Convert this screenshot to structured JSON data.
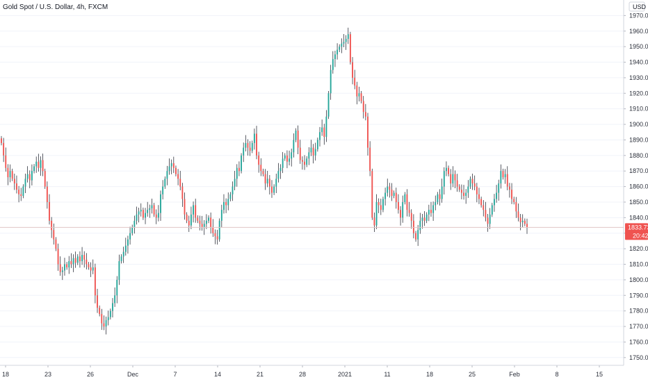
{
  "chart_data": {
    "type": "candlestick",
    "title": "Gold Spot / U.S. Dollar, 4h, FXCM",
    "currency": "USD",
    "ylim": [
      1745,
      1980
    ],
    "y_ticks": [
      1750,
      1760,
      1770,
      1780,
      1790,
      1800,
      1810,
      1820,
      1830,
      1840,
      1850,
      1860,
      1870,
      1880,
      1890,
      1900,
      1910,
      1920,
      1930,
      1940,
      1950,
      1960,
      1970
    ],
    "x_tick_labels": [
      "18",
      "23",
      "26",
      "Dec",
      "7",
      "14",
      "21",
      "28",
      "2021",
      "11",
      "18",
      "25",
      "Feb",
      "8",
      "15"
    ],
    "last_price": "1833.73",
    "countdown": "20:42",
    "colors": {
      "up": "#26a69a",
      "down": "#ef5350",
      "price_badge": "#ef5350",
      "grid": "#f0f3fa"
    },
    "closes": [
      1888,
      1880,
      1872,
      1866,
      1870,
      1865,
      1862,
      1858,
      1855,
      1854,
      1860,
      1865,
      1868,
      1864,
      1870,
      1873,
      1876,
      1872,
      1877,
      1870,
      1860,
      1850,
      1838,
      1832,
      1826,
      1820,
      1810,
      1805,
      1806,
      1810,
      1808,
      1812,
      1810,
      1814,
      1811,
      1815,
      1812,
      1816,
      1813,
      1810,
      1808,
      1806,
      1808,
      1790,
      1782,
      1778,
      1772,
      1770,
      1774,
      1776,
      1780,
      1785,
      1790,
      1800,
      1812,
      1815,
      1818,
      1822,
      1826,
      1830,
      1834,
      1838,
      1842,
      1844,
      1845,
      1840,
      1843,
      1845,
      1846,
      1848,
      1842,
      1840,
      1843,
      1855,
      1860,
      1865,
      1870,
      1873,
      1875,
      1872,
      1868,
      1865,
      1860,
      1852,
      1842,
      1838,
      1835,
      1842,
      1848,
      1840,
      1838,
      1836,
      1834,
      1836,
      1838,
      1840,
      1834,
      1830,
      1828,
      1826,
      1838,
      1845,
      1850,
      1848,
      1852,
      1855,
      1860,
      1865,
      1872,
      1870,
      1880,
      1885,
      1888,
      1885,
      1883,
      1888,
      1894,
      1880,
      1874,
      1870,
      1868,
      1862,
      1865,
      1860,
      1856,
      1860,
      1865,
      1870,
      1872,
      1878,
      1880,
      1876,
      1878,
      1882,
      1890,
      1896,
      1885,
      1877,
      1876,
      1874,
      1878,
      1882,
      1885,
      1880,
      1884,
      1890,
      1895,
      1898,
      1892,
      1905,
      1920,
      1935,
      1942,
      1945,
      1948,
      1950,
      1952,
      1953,
      1955,
      1958,
      1940,
      1930,
      1925,
      1918,
      1920,
      1915,
      1908,
      1905,
      1885,
      1870,
      1840,
      1835,
      1850,
      1848,
      1845,
      1852,
      1856,
      1860,
      1858,
      1854,
      1856,
      1850,
      1845,
      1840,
      1850,
      1855,
      1845,
      1843,
      1838,
      1830,
      1826,
      1832,
      1838,
      1840,
      1838,
      1842,
      1845,
      1843,
      1848,
      1850,
      1855,
      1852,
      1860,
      1870,
      1872,
      1868,
      1862,
      1868,
      1864,
      1860,
      1858,
      1856,
      1854,
      1856,
      1860,
      1865,
      1862,
      1860,
      1855,
      1852,
      1848,
      1845,
      1840,
      1836,
      1842,
      1848,
      1852,
      1856,
      1862,
      1870,
      1866,
      1868,
      1860,
      1858,
      1852,
      1850,
      1844,
      1840,
      1837,
      1838,
      1836,
      1833.73
    ]
  }
}
